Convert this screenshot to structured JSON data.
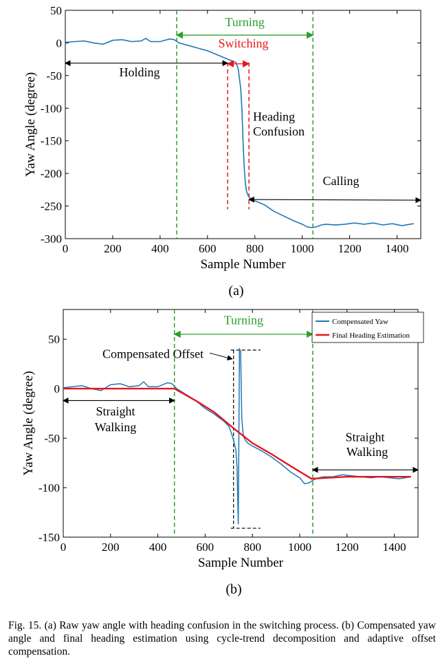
{
  "chart_data": [
    {
      "type": "line",
      "panel_label": "(a)",
      "xlabel": "Sample Number",
      "ylabel": "Yaw Angle (degree)",
      "xlim": [
        0,
        1500
      ],
      "ylim": [
        -300,
        50
      ],
      "xticks": [
        0,
        200,
        400,
        600,
        800,
        1000,
        1200,
        1400
      ],
      "yticks": [
        50,
        0,
        -50,
        -100,
        -150,
        -200,
        -250,
        -300
      ],
      "grid": false,
      "colors": {
        "series": "#1f77b4",
        "guide": "#2ca02c",
        "switch": "#e8141c",
        "arrow": "#000000"
      },
      "series": [
        {
          "x": [
            0,
            40,
            80,
            120,
            160,
            200,
            240,
            280,
            320,
            340,
            360,
            400,
            440,
            460,
            480,
            520,
            560,
            600,
            640,
            680,
            700,
            720,
            730,
            740,
            745,
            750,
            755,
            760,
            765,
            770,
            775,
            780,
            800,
            840,
            880,
            920,
            960,
            1000,
            1020,
            1040,
            1060,
            1080,
            1100,
            1140,
            1180,
            1220,
            1260,
            1300,
            1340,
            1380,
            1420,
            1470
          ],
          "values": [
            1,
            2,
            3,
            0,
            -2,
            4,
            5,
            2,
            3,
            7,
            2,
            2,
            6,
            5,
            0,
            -4,
            -8,
            -12,
            -18,
            -24,
            -27,
            -30,
            -40,
            -70,
            -100,
            -150,
            -190,
            -215,
            -228,
            -233,
            -236,
            -238,
            -242,
            -248,
            -258,
            -265,
            -272,
            -278,
            -282,
            -283,
            -282,
            -279,
            -278,
            -279,
            -278,
            -276,
            -278,
            -276,
            -279,
            -277,
            -280,
            -277
          ]
        }
      ],
      "vlines": [
        470,
        1045
      ],
      "switch_lines": [
        685,
        775
      ],
      "annotations": {
        "turning": "Turning",
        "switching": "Switching",
        "holding": "Holding",
        "heading_confusion_1": "Heading",
        "heading_confusion_2": "Confusion",
        "calling": "Calling"
      }
    },
    {
      "type": "line",
      "panel_label": "(b)",
      "xlabel": "Sample Number",
      "ylabel": "Yaw Angle (degree)",
      "xlim": [
        0,
        1500
      ],
      "ylim": [
        -150,
        80
      ],
      "xticks": [
        0,
        200,
        400,
        600,
        800,
        1000,
        1200,
        1400
      ],
      "yticks": [
        50,
        0,
        -50,
        -100,
        -150
      ],
      "grid": false,
      "legend_position": "top-right",
      "colors": {
        "yaw": "#1f77b4",
        "final": "#e8141c",
        "guide": "#2ca02c",
        "arrow": "#000000"
      },
      "series": [
        {
          "name": "Compensated Yaw",
          "x": [
            0,
            40,
            80,
            120,
            160,
            200,
            240,
            280,
            320,
            340,
            360,
            400,
            440,
            460,
            480,
            520,
            560,
            600,
            640,
            680,
            700,
            710,
            720,
            730,
            735,
            740,
            745,
            750,
            755,
            760,
            765,
            770,
            780,
            800,
            840,
            880,
            920,
            960,
            1000,
            1020,
            1040,
            1060,
            1080,
            1100,
            1140,
            1180,
            1220,
            1260,
            1300,
            1340,
            1380,
            1420,
            1470
          ],
          "values": [
            1,
            2,
            3,
            0,
            -2,
            4,
            5,
            2,
            3,
            7,
            2,
            2,
            6,
            5,
            0,
            -6,
            -12,
            -20,
            -26,
            -33,
            -38,
            -44,
            -52,
            -62,
            -80,
            -137,
            40,
            38,
            -30,
            -44,
            -50,
            -52,
            -55,
            -58,
            -63,
            -69,
            -76,
            -84,
            -90,
            -96,
            -95,
            -92,
            -90,
            -89,
            -89,
            -87,
            -88,
            -89,
            -90,
            -89,
            -90,
            -91,
            -89
          ]
        },
        {
          "name": "Final Heading Estimation",
          "x": [
            0,
            470,
            560,
            640,
            720,
            800,
            880,
            960,
            1050,
            1120,
            1200,
            1300,
            1400,
            1470
          ],
          "values": [
            0,
            0,
            -12,
            -24,
            -40,
            -55,
            -66,
            -78,
            -91,
            -90,
            -89,
            -89,
            -89,
            -89
          ]
        }
      ],
      "vlines": [
        470,
        1055
      ],
      "offset_marks": {
        "x_dash": [
          720,
          770
        ],
        "top": 39,
        "bottom": -141
      },
      "annotations": {
        "turning": "Turning",
        "compensated_offset": "Compensated Offset",
        "straight_1a": "Straight",
        "straight_1b": "Walking",
        "straight_2a": "Straight",
        "straight_2b": "Walking"
      }
    }
  ],
  "caption": "Fig. 15.   (a) Raw yaw angle with heading confusion in the switching process. (b) Compensated yaw angle and final heading estimation using cycle-trend decomposition and adaptive offset compensation."
}
